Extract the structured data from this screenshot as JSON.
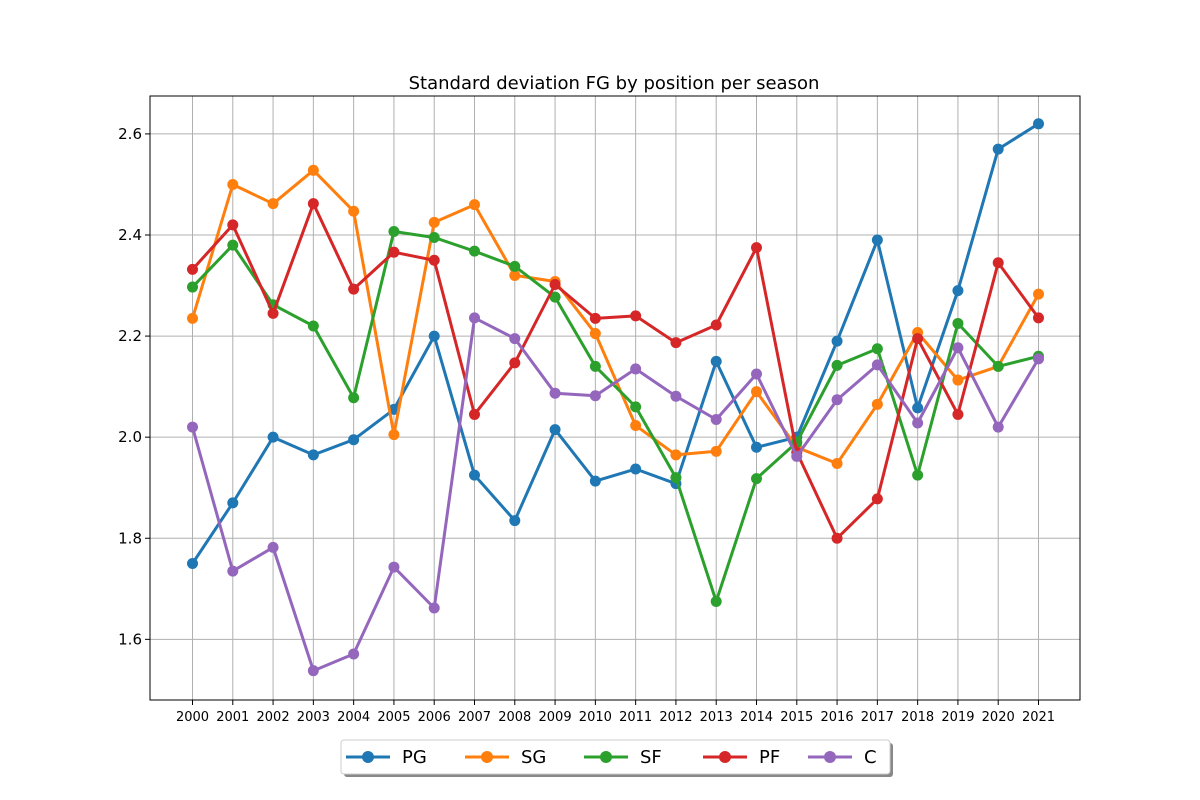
{
  "chart_data": {
    "type": "line",
    "title": "Standard deviation FG by position per season",
    "xlabel": "",
    "ylabel": "",
    "x": [
      "2000",
      "2001",
      "2002",
      "2003",
      "2004",
      "2005",
      "2006",
      "2007",
      "2008",
      "2009",
      "2010",
      "2011",
      "2012",
      "2013",
      "2014",
      "2015",
      "2016",
      "2017",
      "2018",
      "2019",
      "2020",
      "2021"
    ],
    "ylim": [
      1.48,
      2.675
    ],
    "yticks": [
      "1.6",
      "1.8",
      "2.0",
      "2.2",
      "2.4",
      "2.6"
    ],
    "grid": true,
    "legend": "bottom-center",
    "series": [
      {
        "name": "PG",
        "color": "#1f77b4",
        "values": [
          1.75,
          1.87,
          2.0,
          1.965,
          1.995,
          2.055,
          2.2,
          1.925,
          1.835,
          2.015,
          1.913,
          1.937,
          1.908,
          2.15,
          1.98,
          2.0,
          2.19,
          2.39,
          2.058,
          2.29,
          2.57,
          2.62
        ]
      },
      {
        "name": "SG",
        "color": "#ff7f0e",
        "values": [
          2.235,
          2.5,
          2.462,
          2.528,
          2.447,
          2.005,
          2.425,
          2.46,
          2.32,
          2.308,
          2.205,
          2.023,
          1.965,
          1.972,
          2.09,
          1.98,
          1.948,
          2.065,
          2.207,
          2.113,
          2.14,
          2.283
        ]
      },
      {
        "name": "SF",
        "color": "#2ca02c",
        "values": [
          2.297,
          2.38,
          2.262,
          2.22,
          2.078,
          2.407,
          2.395,
          2.368,
          2.338,
          2.277,
          2.14,
          2.06,
          1.92,
          1.675,
          1.918,
          1.99,
          2.142,
          2.175,
          1.925,
          2.225,
          2.14,
          2.16
        ]
      },
      {
        "name": "PF",
        "color": "#d62728",
        "values": [
          2.332,
          2.42,
          2.245,
          2.462,
          2.293,
          2.366,
          2.35,
          2.045,
          2.147,
          2.302,
          2.235,
          2.24,
          2.187,
          2.222,
          2.375,
          1.97,
          1.8,
          1.878,
          2.195,
          2.045,
          2.345,
          2.236
        ]
      },
      {
        "name": "C",
        "color": "#9467bd",
        "values": [
          2.02,
          1.735,
          1.782,
          1.538,
          1.571,
          1.743,
          1.662,
          2.236,
          2.195,
          2.087,
          2.082,
          2.135,
          2.081,
          2.035,
          2.125,
          1.962,
          2.074,
          2.143,
          2.028,
          2.177,
          2.02,
          2.155
        ]
      }
    ]
  }
}
